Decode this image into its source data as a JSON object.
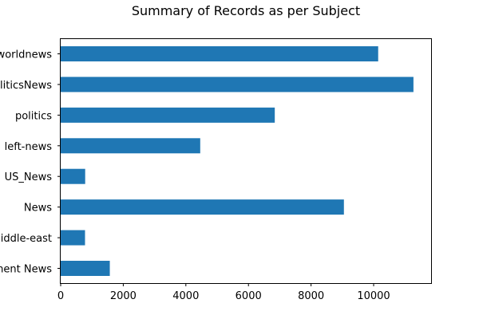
{
  "chart_data": {
    "type": "bar",
    "orientation": "horizontal",
    "title": "Summary of Records as per Subject",
    "xlabel": "",
    "ylabel": "",
    "categories": [
      "worldnews",
      "politicsNews",
      "politics",
      "left-news",
      "US_News",
      "News",
      "Middle-east",
      "Government News"
    ],
    "values": [
      10145,
      11272,
      6841,
      4459,
      783,
      9050,
      778,
      1570
    ],
    "xlim": [
      0,
      11836
    ],
    "xticks": [
      0,
      2000,
      4000,
      6000,
      8000,
      10000
    ],
    "grid": false,
    "legend": "none",
    "bar_color": "#1f77b4"
  }
}
